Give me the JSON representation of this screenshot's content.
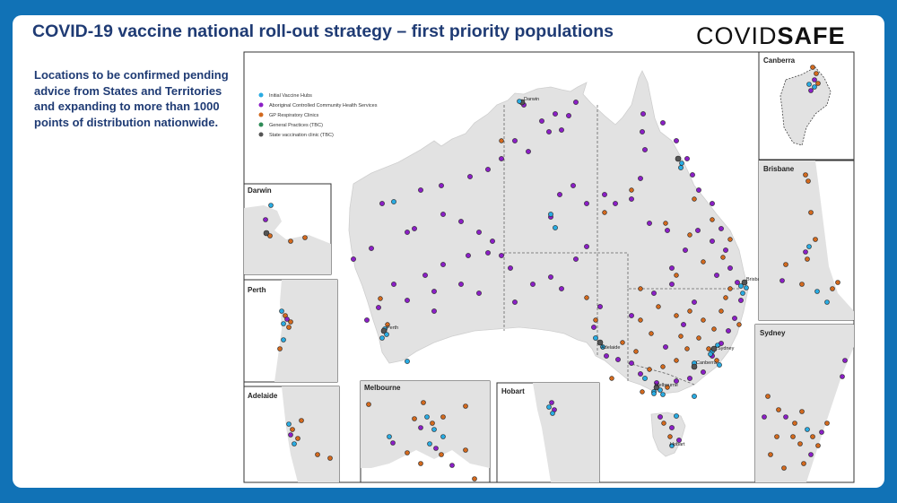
{
  "title": "COVID-19 vaccine national roll-out strategy – first priority populations",
  "logo": {
    "part1": "COVID",
    "part2": "SAFE"
  },
  "description": "Locations to be confirmed pending advice from States and Territories and expanding to more than 1000 points of distribution nationwide.",
  "legend": [
    {
      "label": "Initial Vaccine Hubs",
      "color": "#29abe2"
    },
    {
      "label": "Aboriginal Controlled Community Health Services",
      "color": "#8b1fc6"
    },
    {
      "label": "GP Respiratory Clinics",
      "color": "#d2691e"
    },
    {
      "label": "General Practices (TBC)",
      "color": "#2e8b57"
    },
    {
      "label": "State vaccination clinic (TBC)",
      "color": "#555555"
    }
  ],
  "city_labels": {
    "darwin": "Darwin",
    "perth": "Perth",
    "adelaide": "Adelaide",
    "melbourne": "Melbourne",
    "hobart": "Hobart",
    "canberra": "Canberra",
    "sydney": "Sydney",
    "brisbane": "Brisbane"
  },
  "insets": {
    "darwin": "Darwin",
    "perth": "Perth",
    "adelaide": "Adelaide",
    "melbourne": "Melbourne",
    "hobart": "Hobart",
    "canberra": "Canberra",
    "brisbane": "Brisbane",
    "sydney": "Sydney"
  }
}
